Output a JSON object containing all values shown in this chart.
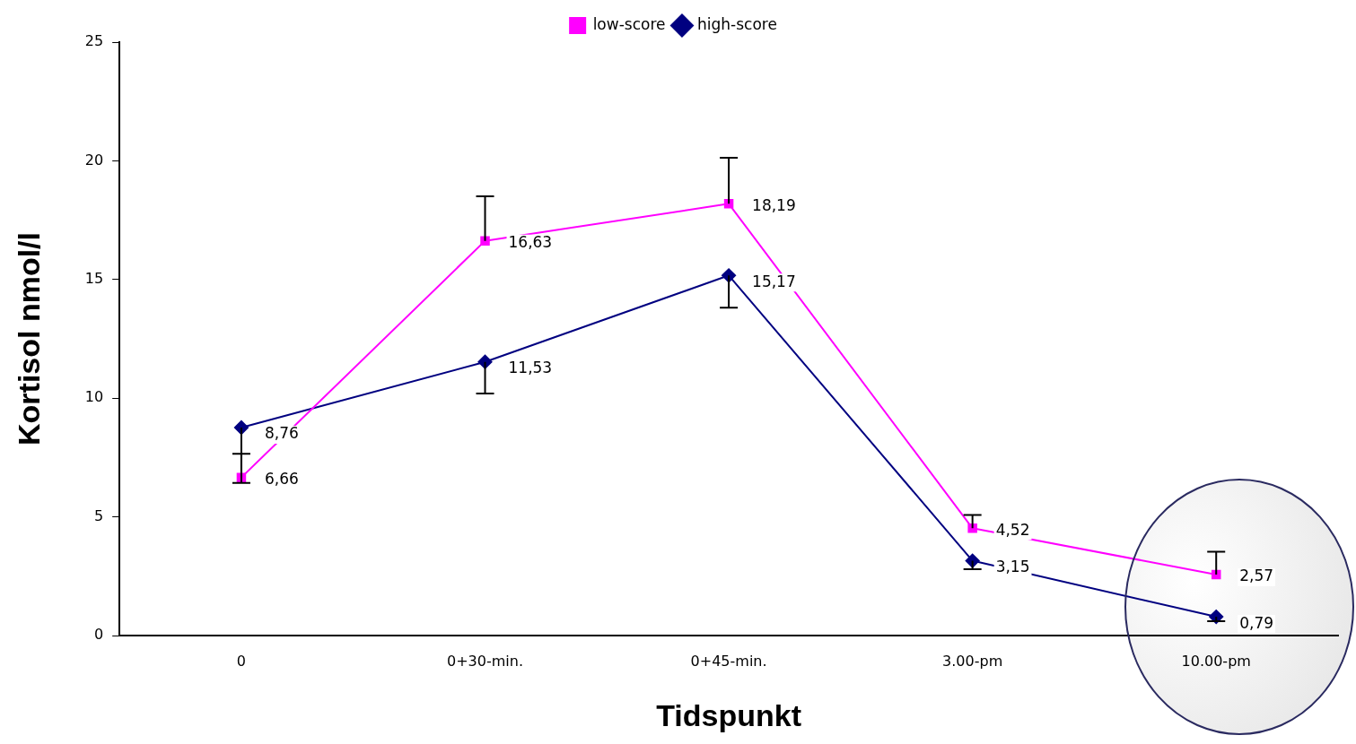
{
  "chart_data": {
    "type": "line",
    "xlabel": "Tidspunkt",
    "ylabel": "Kortisol nmol/l",
    "categories": [
      "0",
      "0+30-min.",
      "0+45-min.",
      "3.00-pm",
      "10.00-pm"
    ],
    "series": [
      {
        "name": "low-score",
        "color": "#ff00ff",
        "marker": "square",
        "values": [
          6.66,
          16.63,
          18.19,
          4.52,
          2.57
        ],
        "value_labels": [
          "6,66",
          "16,63",
          "18,19",
          "4,52",
          "2,57"
        ],
        "errors": [
          [
            6.66,
            7.66
          ],
          [
            16.63,
            18.5
          ],
          [
            18.19,
            20.13
          ],
          [
            4.52,
            5.08
          ],
          [
            2.57,
            3.53
          ]
        ]
      },
      {
        "name": "high-score",
        "color": "#000080",
        "marker": "diamond",
        "values": [
          8.76,
          11.53,
          15.17,
          3.15,
          0.79
        ],
        "value_labels": [
          "8,76",
          "11,53",
          "15,17",
          "3,15",
          "0,79"
        ],
        "errors": [
          [
            6.43,
            8.76
          ],
          [
            10.2,
            11.53
          ],
          [
            13.81,
            15.17
          ],
          [
            2.79,
            3.15
          ],
          [
            0.6,
            0.79
          ]
        ]
      }
    ],
    "ylim": [
      0,
      25
    ],
    "yticks": [
      0,
      5,
      10,
      15,
      20,
      25
    ],
    "grid": false,
    "legend": "top",
    "line_style": "solid"
  }
}
